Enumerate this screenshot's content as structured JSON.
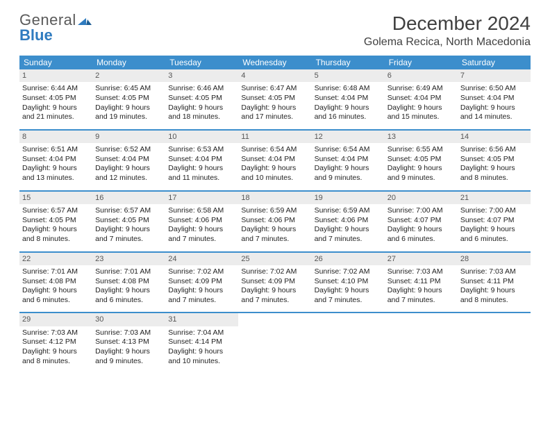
{
  "logo": {
    "word1": "General",
    "word2": "Blue"
  },
  "title": "December 2024",
  "location": "Golema Recica, North Macedonia",
  "colors": {
    "header_bg": "#3c8ecc",
    "header_text": "#ffffff",
    "daynum_bg": "#ececec",
    "logo_gray": "#5a5a5a",
    "logo_blue": "#2f7bbf"
  },
  "day_headers": [
    "Sunday",
    "Monday",
    "Tuesday",
    "Wednesday",
    "Thursday",
    "Friday",
    "Saturday"
  ],
  "weeks": [
    [
      {
        "n": "1",
        "sr": "Sunrise: 6:44 AM",
        "ss": "Sunset: 4:05 PM",
        "d1": "Daylight: 9 hours",
        "d2": "and 21 minutes."
      },
      {
        "n": "2",
        "sr": "Sunrise: 6:45 AM",
        "ss": "Sunset: 4:05 PM",
        "d1": "Daylight: 9 hours",
        "d2": "and 19 minutes."
      },
      {
        "n": "3",
        "sr": "Sunrise: 6:46 AM",
        "ss": "Sunset: 4:05 PM",
        "d1": "Daylight: 9 hours",
        "d2": "and 18 minutes."
      },
      {
        "n": "4",
        "sr": "Sunrise: 6:47 AM",
        "ss": "Sunset: 4:05 PM",
        "d1": "Daylight: 9 hours",
        "d2": "and 17 minutes."
      },
      {
        "n": "5",
        "sr": "Sunrise: 6:48 AM",
        "ss": "Sunset: 4:04 PM",
        "d1": "Daylight: 9 hours",
        "d2": "and 16 minutes."
      },
      {
        "n": "6",
        "sr": "Sunrise: 6:49 AM",
        "ss": "Sunset: 4:04 PM",
        "d1": "Daylight: 9 hours",
        "d2": "and 15 minutes."
      },
      {
        "n": "7",
        "sr": "Sunrise: 6:50 AM",
        "ss": "Sunset: 4:04 PM",
        "d1": "Daylight: 9 hours",
        "d2": "and 14 minutes."
      }
    ],
    [
      {
        "n": "8",
        "sr": "Sunrise: 6:51 AM",
        "ss": "Sunset: 4:04 PM",
        "d1": "Daylight: 9 hours",
        "d2": "and 13 minutes."
      },
      {
        "n": "9",
        "sr": "Sunrise: 6:52 AM",
        "ss": "Sunset: 4:04 PM",
        "d1": "Daylight: 9 hours",
        "d2": "and 12 minutes."
      },
      {
        "n": "10",
        "sr": "Sunrise: 6:53 AM",
        "ss": "Sunset: 4:04 PM",
        "d1": "Daylight: 9 hours",
        "d2": "and 11 minutes."
      },
      {
        "n": "11",
        "sr": "Sunrise: 6:54 AM",
        "ss": "Sunset: 4:04 PM",
        "d1": "Daylight: 9 hours",
        "d2": "and 10 minutes."
      },
      {
        "n": "12",
        "sr": "Sunrise: 6:54 AM",
        "ss": "Sunset: 4:04 PM",
        "d1": "Daylight: 9 hours",
        "d2": "and 9 minutes."
      },
      {
        "n": "13",
        "sr": "Sunrise: 6:55 AM",
        "ss": "Sunset: 4:05 PM",
        "d1": "Daylight: 9 hours",
        "d2": "and 9 minutes."
      },
      {
        "n": "14",
        "sr": "Sunrise: 6:56 AM",
        "ss": "Sunset: 4:05 PM",
        "d1": "Daylight: 9 hours",
        "d2": "and 8 minutes."
      }
    ],
    [
      {
        "n": "15",
        "sr": "Sunrise: 6:57 AM",
        "ss": "Sunset: 4:05 PM",
        "d1": "Daylight: 9 hours",
        "d2": "and 8 minutes."
      },
      {
        "n": "16",
        "sr": "Sunrise: 6:57 AM",
        "ss": "Sunset: 4:05 PM",
        "d1": "Daylight: 9 hours",
        "d2": "and 7 minutes."
      },
      {
        "n": "17",
        "sr": "Sunrise: 6:58 AM",
        "ss": "Sunset: 4:06 PM",
        "d1": "Daylight: 9 hours",
        "d2": "and 7 minutes."
      },
      {
        "n": "18",
        "sr": "Sunrise: 6:59 AM",
        "ss": "Sunset: 4:06 PM",
        "d1": "Daylight: 9 hours",
        "d2": "and 7 minutes."
      },
      {
        "n": "19",
        "sr": "Sunrise: 6:59 AM",
        "ss": "Sunset: 4:06 PM",
        "d1": "Daylight: 9 hours",
        "d2": "and 7 minutes."
      },
      {
        "n": "20",
        "sr": "Sunrise: 7:00 AM",
        "ss": "Sunset: 4:07 PM",
        "d1": "Daylight: 9 hours",
        "d2": "and 6 minutes."
      },
      {
        "n": "21",
        "sr": "Sunrise: 7:00 AM",
        "ss": "Sunset: 4:07 PM",
        "d1": "Daylight: 9 hours",
        "d2": "and 6 minutes."
      }
    ],
    [
      {
        "n": "22",
        "sr": "Sunrise: 7:01 AM",
        "ss": "Sunset: 4:08 PM",
        "d1": "Daylight: 9 hours",
        "d2": "and 6 minutes."
      },
      {
        "n": "23",
        "sr": "Sunrise: 7:01 AM",
        "ss": "Sunset: 4:08 PM",
        "d1": "Daylight: 9 hours",
        "d2": "and 6 minutes."
      },
      {
        "n": "24",
        "sr": "Sunrise: 7:02 AM",
        "ss": "Sunset: 4:09 PM",
        "d1": "Daylight: 9 hours",
        "d2": "and 7 minutes."
      },
      {
        "n": "25",
        "sr": "Sunrise: 7:02 AM",
        "ss": "Sunset: 4:09 PM",
        "d1": "Daylight: 9 hours",
        "d2": "and 7 minutes."
      },
      {
        "n": "26",
        "sr": "Sunrise: 7:02 AM",
        "ss": "Sunset: 4:10 PM",
        "d1": "Daylight: 9 hours",
        "d2": "and 7 minutes."
      },
      {
        "n": "27",
        "sr": "Sunrise: 7:03 AM",
        "ss": "Sunset: 4:11 PM",
        "d1": "Daylight: 9 hours",
        "d2": "and 7 minutes."
      },
      {
        "n": "28",
        "sr": "Sunrise: 7:03 AM",
        "ss": "Sunset: 4:11 PM",
        "d1": "Daylight: 9 hours",
        "d2": "and 8 minutes."
      }
    ],
    [
      {
        "n": "29",
        "sr": "Sunrise: 7:03 AM",
        "ss": "Sunset: 4:12 PM",
        "d1": "Daylight: 9 hours",
        "d2": "and 8 minutes."
      },
      {
        "n": "30",
        "sr": "Sunrise: 7:03 AM",
        "ss": "Sunset: 4:13 PM",
        "d1": "Daylight: 9 hours",
        "d2": "and 9 minutes."
      },
      {
        "n": "31",
        "sr": "Sunrise: 7:04 AM",
        "ss": "Sunset: 4:14 PM",
        "d1": "Daylight: 9 hours",
        "d2": "and 10 minutes."
      },
      {
        "empty": true
      },
      {
        "empty": true
      },
      {
        "empty": true
      },
      {
        "empty": true
      }
    ]
  ]
}
